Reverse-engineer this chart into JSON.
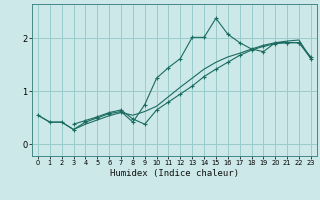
{
  "xlabel": "Humidex (Indice chaleur)",
  "background_color": "#cce8e8",
  "grid_color": "#99cccc",
  "line_color": "#1a6b60",
  "xlim": [
    -0.5,
    23.5
  ],
  "ylim": [
    -0.22,
    2.65
  ],
  "yticks": [
    0,
    1,
    2
  ],
  "xticks": [
    0,
    1,
    2,
    3,
    4,
    5,
    6,
    7,
    8,
    9,
    10,
    11,
    12,
    13,
    14,
    15,
    16,
    17,
    18,
    19,
    20,
    21,
    22,
    23
  ],
  "series1_x": [
    0,
    1,
    2,
    3,
    4,
    5,
    6,
    7,
    8,
    9,
    10,
    11,
    12,
    13,
    14,
    15,
    16,
    17,
    18,
    19,
    20,
    21,
    22,
    23
  ],
  "series1_y": [
    0.55,
    0.42,
    0.42,
    0.28,
    0.42,
    0.5,
    0.58,
    0.62,
    0.42,
    0.75,
    1.25,
    1.45,
    1.62,
    2.02,
    2.02,
    2.38,
    2.08,
    1.92,
    1.8,
    1.75,
    1.92,
    1.92,
    1.92,
    1.65
  ],
  "series2_x": [
    0,
    1,
    2,
    3,
    4,
    5,
    6,
    7,
    8,
    9,
    10,
    11,
    12,
    13,
    14,
    15,
    16,
    17,
    18,
    19,
    20,
    21,
    22,
    23
  ],
  "series2_y": [
    0.55,
    0.42,
    0.42,
    0.28,
    0.38,
    0.46,
    0.54,
    0.6,
    0.55,
    0.62,
    0.72,
    0.9,
    1.08,
    1.25,
    1.42,
    1.55,
    1.65,
    1.72,
    1.8,
    1.87,
    1.92,
    1.95,
    1.97,
    1.62
  ],
  "series3_x": [
    3,
    4,
    5,
    6,
    7,
    8,
    9,
    10,
    11,
    12,
    13,
    14,
    15,
    16,
    17,
    18,
    19,
    20,
    21,
    22,
    23
  ],
  "series3_y": [
    0.38,
    0.45,
    0.52,
    0.6,
    0.65,
    0.48,
    0.38,
    0.65,
    0.8,
    0.95,
    1.1,
    1.28,
    1.42,
    1.55,
    1.68,
    1.78,
    1.85,
    1.9,
    1.92,
    1.92,
    1.62
  ]
}
